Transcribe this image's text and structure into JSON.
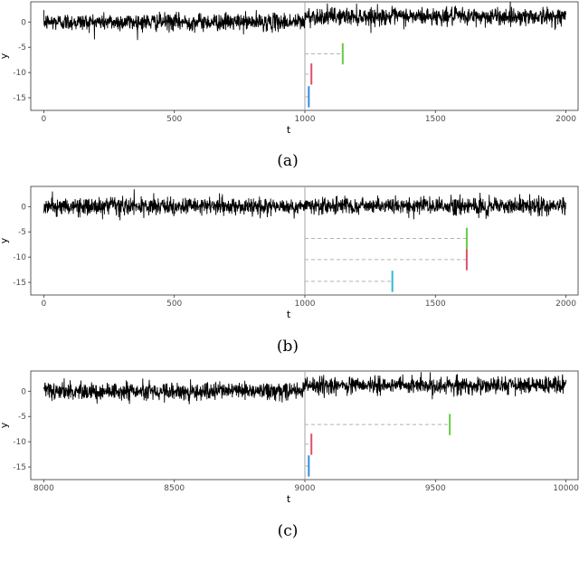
{
  "chart_data": [
    {
      "type": "line",
      "caption": "(a)",
      "xlabel": "t",
      "ylabel": "y",
      "xlim": [
        -50,
        2050
      ],
      "ylim": [
        -17.5,
        4
      ],
      "xticks": [
        0,
        500,
        1000,
        1500,
        2000
      ],
      "xtick_labels": [
        "0",
        "500",
        "1000",
        "1500",
        "2000"
      ],
      "yticks": [
        0,
        -5,
        -10,
        -15
      ],
      "ytick_labels": [
        "0",
        "-5",
        "-10",
        "-15"
      ],
      "grid": false,
      "series": [
        {
          "t_start": 0,
          "t_end": 2000,
          "mean_before": 0,
          "mean_after": 1.1,
          "changepoint": 1000,
          "noise_sd": 0.85
        }
      ],
      "vline_x": 1000,
      "intervals": [
        {
          "start": 1000,
          "end": 1145,
          "y": -6.3,
          "color": "#66cc44"
        },
        {
          "start": 1000,
          "end": 1025,
          "y": -10.3,
          "color": "#e0506a"
        },
        {
          "start": 1000,
          "end": 1015,
          "y": -14.8,
          "color": "#2f8fe0"
        }
      ]
    },
    {
      "type": "line",
      "caption": "(b)",
      "xlabel": "t",
      "ylabel": "y",
      "xlim": [
        -50,
        2050
      ],
      "ylim": [
        -17.5,
        4
      ],
      "xticks": [
        0,
        500,
        1000,
        1500,
        2000
      ],
      "xtick_labels": [
        "0",
        "500",
        "1000",
        "1500",
        "2000"
      ],
      "yticks": [
        0,
        -5,
        -10,
        -15
      ],
      "ytick_labels": [
        "0",
        "-5",
        "-10",
        "-15"
      ],
      "grid": false,
      "series": [
        {
          "t_start": 0,
          "t_end": 2000,
          "mean_before": 0,
          "mean_after": 0.1,
          "changepoint": 1000,
          "noise_sd": 0.85
        }
      ],
      "vline_x": 1000,
      "intervals": [
        {
          "start": 1000,
          "end": 1620,
          "y": -6.3,
          "color": "#66cc44"
        },
        {
          "start": 1000,
          "end": 1620,
          "y": -10.5,
          "color": "#e0506a"
        },
        {
          "start": 1000,
          "end": 1335,
          "y": -14.8,
          "color": "#2fb8d8"
        }
      ]
    },
    {
      "type": "line",
      "caption": "(c)",
      "xlabel": "t",
      "ylabel": "y",
      "xlim": [
        7950,
        10050
      ],
      "ylim": [
        -17.5,
        4
      ],
      "xticks": [
        8000,
        8500,
        9000,
        9500,
        10000
      ],
      "xtick_labels": [
        "8000",
        "8500",
        "9000",
        "9500",
        "10000"
      ],
      "yticks": [
        0,
        -5,
        -10,
        -15
      ],
      "ytick_labels": [
        "0",
        "-5",
        "-10",
        "-15"
      ],
      "grid": false,
      "series": [
        {
          "t_start": 8000,
          "t_end": 10000,
          "mean_before": 0,
          "mean_after": 1.1,
          "changepoint": 9000,
          "noise_sd": 0.85
        }
      ],
      "vline_x": 9000,
      "intervals": [
        {
          "start": 9000,
          "end": 9555,
          "y": -6.6,
          "color": "#66cc44"
        },
        {
          "start": 9000,
          "end": 9025,
          "y": -10.5,
          "color": "#e0506a"
        },
        {
          "start": 9000,
          "end": 9015,
          "y": -14.8,
          "color": "#2f8fe0"
        }
      ]
    }
  ]
}
